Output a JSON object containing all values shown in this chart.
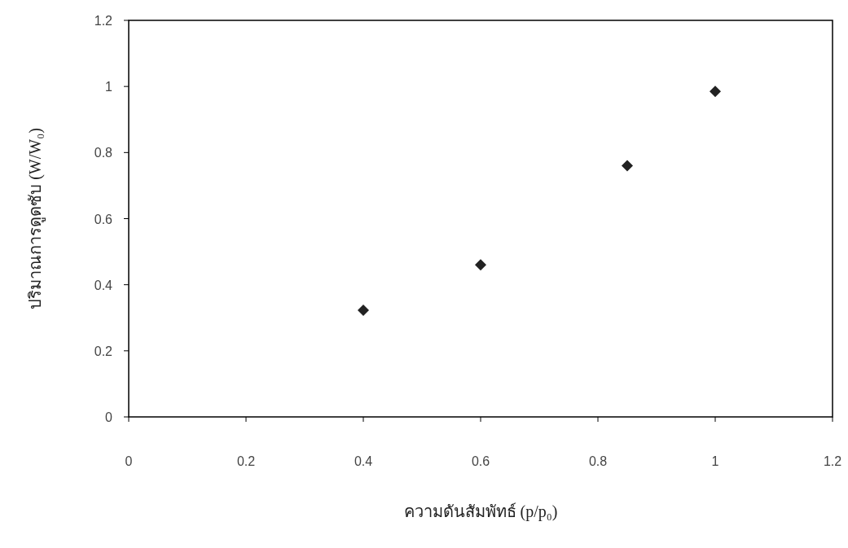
{
  "chart_data": {
    "type": "scatter",
    "xlabel": "ความดันสัมพัทธ์ (p/p₀)",
    "ylabel": "ปริมาณการดูดซับ (W/W₀)",
    "x": [
      0.4,
      0.6,
      0.85,
      1.0
    ],
    "series": [
      {
        "color": "#222222",
        "values": [
          0.323,
          0.46,
          0.76,
          0.985
        ]
      }
    ],
    "marker": "diamond",
    "xlim": [
      0,
      1.2
    ],
    "xticks": [
      0,
      0.2,
      0.4,
      0.6,
      0.8,
      1,
      1.2
    ],
    "ylim": [
      0,
      1.2
    ],
    "yticks": [
      0,
      0.2,
      0.4,
      0.6,
      0.8,
      1,
      1.2
    ],
    "grid": false
  }
}
